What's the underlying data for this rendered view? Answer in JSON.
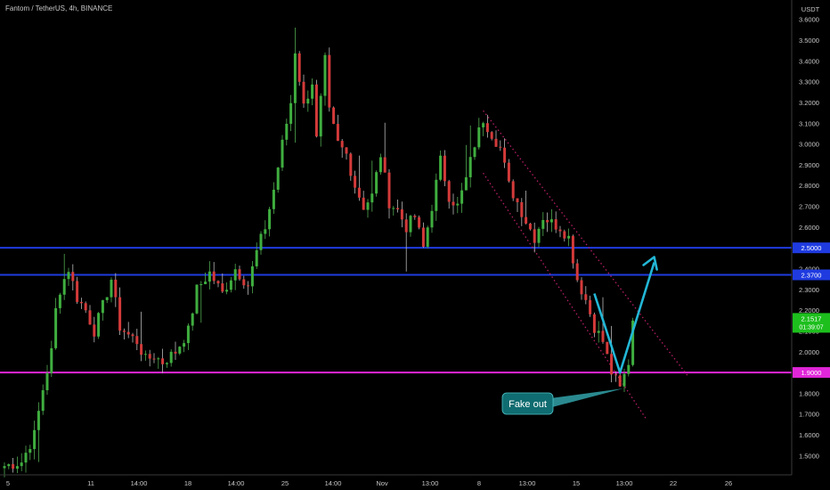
{
  "header": {
    "title": "Fantom / TetherUS, 4h, BINANCE"
  },
  "axis": {
    "currency": "USDT",
    "y_ticks": [
      "3.6000",
      "3.5000",
      "3.4000",
      "3.3000",
      "3.2000",
      "3.1000",
      "3.0000",
      "2.9000",
      "2.8000",
      "2.7000",
      "2.6000",
      "2.5000",
      "2.4000",
      "2.3000",
      "2.2000",
      "2.1000",
      "2.0000",
      "1.9000",
      "1.8000",
      "1.7000",
      "1.6000",
      "1.5000"
    ],
    "x_ticks": [
      "5",
      "11",
      "14:00",
      "18",
      "14:00",
      "25",
      "14:00",
      "Nov",
      "13:00",
      "8",
      "13:00",
      "15",
      "13:00",
      "22",
      "26"
    ]
  },
  "price_tags": {
    "resistance_upper": "2.5000",
    "resistance_lower": "2.3700",
    "current_price": "2.1517",
    "countdown": "01:39:07",
    "support": "1.9000"
  },
  "annotation": {
    "label": "Fake out"
  },
  "colors": {
    "up": "#26a69a",
    "up_candle": "#3fae3f",
    "down_candle": "#d43a3a",
    "blue_level": "#1f3be0",
    "magenta_level": "#e026d8",
    "channel": "#b41e64",
    "arrow": "#22b7d6",
    "current_tag": "#1dbf1d"
  },
  "chart_data": {
    "type": "candlestick",
    "title": "Fantom / TetherUS, 4h, BINANCE",
    "ylabel": "USDT",
    "ylim": [
      1.45,
      3.65
    ],
    "horizontal_levels": [
      {
        "value": 2.5,
        "color": "blue"
      },
      {
        "value": 2.37,
        "color": "blue"
      },
      {
        "value": 1.9,
        "color": "magenta"
      }
    ],
    "path_points": [
      [
        0,
        1.45
      ],
      [
        4,
        1.47
      ],
      [
        7,
        1.6
      ],
      [
        9,
        1.82
      ],
      [
        11,
        2.0
      ],
      [
        12,
        2.2
      ],
      [
        13,
        2.3
      ],
      [
        15,
        2.4
      ],
      [
        17,
        2.26
      ],
      [
        19,
        2.2
      ],
      [
        21,
        2.1
      ],
      [
        23,
        2.22
      ],
      [
        25,
        2.35
      ],
      [
        27,
        2.12
      ],
      [
        29,
        2.08
      ],
      [
        31,
        2.05
      ],
      [
        33,
        1.96
      ],
      [
        35,
        1.98
      ],
      [
        37,
        1.95
      ],
      [
        40,
        2.0
      ],
      [
        43,
        2.1
      ],
      [
        45,
        2.3
      ],
      [
        48,
        2.38
      ],
      [
        51,
        2.28
      ],
      [
        54,
        2.4
      ],
      [
        57,
        2.32
      ],
      [
        59,
        2.48
      ],
      [
        61,
        2.6
      ],
      [
        63,
        2.78
      ],
      [
        65,
        3.0
      ],
      [
        67,
        3.2
      ],
      [
        68,
        3.45
      ],
      [
        70,
        3.18
      ],
      [
        72,
        3.3
      ],
      [
        73,
        3.02
      ],
      [
        75,
        3.4
      ],
      [
        76,
        3.15
      ],
      [
        78,
        3.0
      ],
      [
        80,
        2.95
      ],
      [
        82,
        2.8
      ],
      [
        84,
        2.7
      ],
      [
        86,
        2.75
      ],
      [
        88,
        2.95
      ],
      [
        90,
        2.72
      ],
      [
        92,
        2.68
      ],
      [
        94,
        2.6
      ],
      [
        96,
        2.65
      ],
      [
        98,
        2.5
      ],
      [
        100,
        2.7
      ],
      [
        102,
        2.92
      ],
      [
        104,
        2.75
      ],
      [
        106,
        2.7
      ],
      [
        108,
        2.83
      ],
      [
        110,
        3.0
      ],
      [
        112,
        3.12
      ],
      [
        114,
        3.05
      ],
      [
        116,
        2.98
      ],
      [
        118,
        2.8
      ],
      [
        120,
        2.72
      ],
      [
        122,
        2.63
      ],
      [
        124,
        2.55
      ],
      [
        126,
        2.65
      ],
      [
        128,
        2.62
      ],
      [
        130,
        2.6
      ],
      [
        132,
        2.55
      ],
      [
        134,
        2.35
      ],
      [
        136,
        2.25
      ],
      [
        138,
        2.12
      ],
      [
        140,
        2.05
      ],
      [
        142,
        1.9
      ],
      [
        144,
        1.82
      ],
      [
        146,
        1.95
      ],
      [
        147,
        2.15
      ]
    ],
    "channel": {
      "upper": [
        [
          112,
          3.16
        ],
        [
          160,
          1.88
        ]
      ],
      "lower": [
        [
          112,
          2.86
        ],
        [
          150,
          1.68
        ]
      ]
    },
    "projection": [
      [
        138,
        2.28
      ],
      [
        144,
        1.9
      ],
      [
        152,
        2.43
      ]
    ]
  }
}
